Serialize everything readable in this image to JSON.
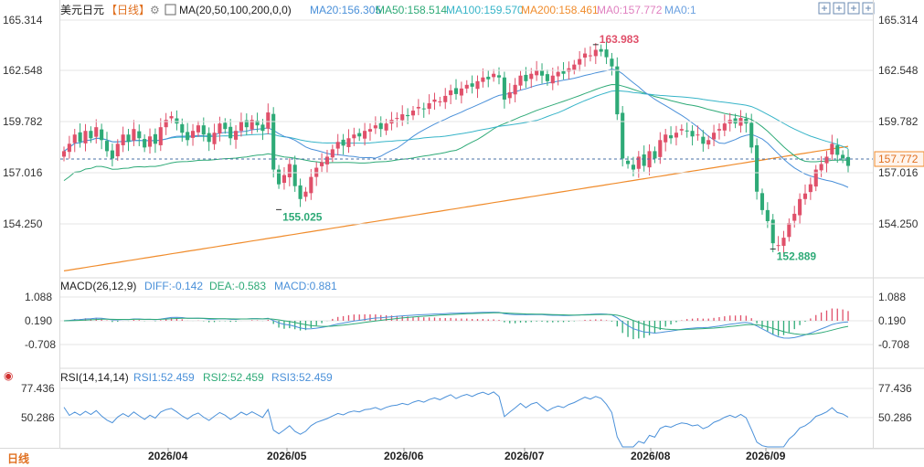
{
  "header": {
    "symbol": "美元日元",
    "period": "【日线】",
    "ma_spec": "MA(20,50,100,200,0,0)",
    "ma_values": [
      {
        "label": "MA20:156.305",
        "color": "#4a90d9"
      },
      {
        "label": "MA50:158.514",
        "color": "#2eaa77"
      },
      {
        "label": "MA100:159.570",
        "color": "#36b4c8"
      },
      {
        "label": "MA200:158.461",
        "color": "#f08c2c"
      },
      {
        "label": "MA0:157.772",
        "color": "#e080c0"
      },
      {
        "label": "MA0:1",
        "color": "#6aa0e0"
      }
    ],
    "toolbar_icons": [
      "crosshair-icon",
      "zoom-in-icon",
      "zoom-out-icon",
      "fit-icon"
    ]
  },
  "price_axis": {
    "ticks": [
      "165.314",
      "162.548",
      "159.782",
      "157.016",
      "154.250"
    ],
    "last_price": "157.772"
  },
  "annotations": {
    "high": "163.983",
    "low1": "155.025",
    "low2": "152.889"
  },
  "macd": {
    "title": "MACD(26,12,9)",
    "diff": "DIFF:-0.142",
    "dea": "DEA:-0.583",
    "macd": "MACD:0.881",
    "ticks": [
      "1.088",
      "0.190",
      "-0.708"
    ]
  },
  "rsi": {
    "title": "RSI(14,14,14)",
    "rsi1": "RSI1:52.459",
    "rsi2": "RSI2:52.459",
    "rsi3": "RSI3:52.459",
    "ticks": [
      "77.436",
      "50.286"
    ]
  },
  "period_button": "日线",
  "x_ticks": [
    "2026/04",
    "2026/05",
    "2026/06",
    "2026/07",
    "2026/08",
    "2026/09"
  ],
  "colors": {
    "up": "#e0506a",
    "down": "#2eaa77",
    "grid": "#e6e6e6",
    "axis_text": "#333333"
  },
  "chart_data": {
    "type": "candlestick",
    "series_closes": [
      158.2,
      158.6,
      159.1,
      158.7,
      159.3,
      158.9,
      159.5,
      158.8,
      158.2,
      157.8,
      158.6,
      159.1,
      158.7,
      159.4,
      158.9,
      158.4,
      159.0,
      158.6,
      159.5,
      159.9,
      160.1,
      159.7,
      159.2,
      158.8,
      159.3,
      159.6,
      159.1,
      158.7,
      159.2,
      159.7,
      159.4,
      158.9,
      159.3,
      159.8,
      159.5,
      159.9,
      159.6,
      159.3,
      160.3,
      157.2,
      156.4,
      156.9,
      157.5,
      156.3,
      155.6,
      156.0,
      156.8,
      157.3,
      157.6,
      157.9,
      158.3,
      158.7,
      158.5,
      158.9,
      159.1,
      159.0,
      159.3,
      159.4,
      159.6,
      159.4,
      159.7,
      159.9,
      160.0,
      160.2,
      160.1,
      160.4,
      160.6,
      160.5,
      160.8,
      161.0,
      160.9,
      161.2,
      161.5,
      161.3,
      161.6,
      161.8,
      161.7,
      162.0,
      162.2,
      162.1,
      162.4,
      162.2,
      161.0,
      161.4,
      161.8,
      162.3,
      162.0,
      162.4,
      162.6,
      162.3,
      162.0,
      162.3,
      162.5,
      162.4,
      162.7,
      162.9,
      163.2,
      163.5,
      163.4,
      163.7,
      163.6,
      163.3,
      162.8,
      160.2,
      157.8,
      157.5,
      157.2,
      157.9,
      157.4,
      158.2,
      157.8,
      158.8,
      159.1,
      158.9,
      159.2,
      159.4,
      159.3,
      159.0,
      159.1,
      158.6,
      158.8,
      159.2,
      159.4,
      159.7,
      159.9,
      159.7,
      160.0,
      159.7,
      158.4,
      156.0,
      155.0,
      154.4,
      153.2,
      153.1,
      153.5,
      154.3,
      154.8,
      155.6,
      155.9,
      156.4,
      157.2,
      157.5,
      157.9,
      158.6,
      158.0,
      157.8,
      157.4
    ],
    "events": [
      {
        "label": "163.983",
        "type": "high"
      },
      {
        "label": "155.025",
        "type": "low"
      },
      {
        "label": "152.889",
        "type": "low"
      }
    ],
    "last_value": 157.772,
    "ma_values": {
      "MA20": 156.305,
      "MA50": 158.514,
      "MA100": 159.57,
      "MA200": 158.461
    },
    "macd_values": {
      "DIFF": -0.142,
      "DEA": -0.583,
      "MACD": 0.881
    },
    "rsi_values": {
      "RSI1": 52.459,
      "RSI2": 52.459,
      "RSI3": 52.459
    },
    "x_ticks": [
      "2026/04",
      "2026/05",
      "2026/06",
      "2026/07",
      "2026/08",
      "2026/09"
    ]
  }
}
